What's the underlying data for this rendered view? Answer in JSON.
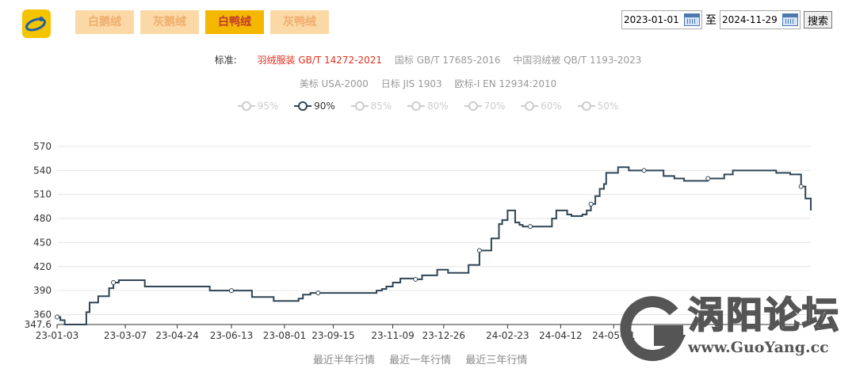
{
  "tabs": [
    {
      "label": "白鹅绒",
      "active": false
    },
    {
      "label": "灰鹅绒",
      "active": false
    },
    {
      "label": "白鸭绒",
      "active": true
    },
    {
      "label": "灰鸭绒",
      "active": false
    }
  ],
  "date_filter": {
    "start": "2023-01-01",
    "to_label": "至",
    "end": "2024-11-29",
    "search_label": "搜索"
  },
  "standards": {
    "label": "标准:",
    "row1": [
      "羽绒服装 GB/T 14272-2021",
      "国标 GB/T 17685-2016",
      "中国羽绒被 QB/T 1193-2023"
    ],
    "row2": [
      "美标 USA-2000",
      "日标 JIS 1903",
      "欧标-I EN 12934:2010"
    ],
    "active": "羽绒服装 GB/T 14272-2021"
  },
  "legend": [
    {
      "label": "95%",
      "selected": false
    },
    {
      "label": "90%",
      "selected": true
    },
    {
      "label": "85%",
      "selected": false
    },
    {
      "label": "80%",
      "selected": false
    },
    {
      "label": "70%",
      "selected": false
    },
    {
      "label": "60%",
      "selected": false
    },
    {
      "label": "50%",
      "selected": false
    }
  ],
  "range_links": [
    "最近半年行情",
    "最近一年行情",
    "最近三年行情"
  ],
  "watermark": {
    "title": "涡阳论坛",
    "url": "www.GuoYang.cc"
  },
  "colors": {
    "line": "#2f4554",
    "tab_active": "#f5b800",
    "tab_inactive": "#fbd9a6",
    "standard_active": "#e0301e"
  },
  "chart_data": {
    "type": "line",
    "ylim": [
      347.6,
      570
    ],
    "y_ticks": [
      "570",
      "540",
      "510",
      "480",
      "450",
      "420",
      "390",
      "360",
      "347.6"
    ],
    "x_ticks": [
      "23-01-03",
      "23-03-07",
      "23-04-24",
      "23-06-13",
      "23-08-01",
      "23-09-15",
      "23-11-09",
      "23-12-26",
      "24-02-23",
      "24-04-12",
      "24-05-31"
    ],
    "series": [
      {
        "name": "90%",
        "x": [
          "2023-01-03",
          "2023-01-06",
          "2023-01-10",
          "2023-01-20",
          "2023-01-30",
          "2023-02-02",
          "2023-02-06",
          "2023-02-10",
          "2023-02-14",
          "2023-02-20",
          "2023-02-24",
          "2023-03-01",
          "2023-03-07",
          "2023-03-15",
          "2023-03-22",
          "2023-03-25",
          "2023-04-01",
          "2023-04-24",
          "2023-05-20",
          "2023-05-24",
          "2023-06-13",
          "2023-06-28",
          "2023-07-02",
          "2023-07-18",
          "2023-07-22",
          "2023-08-01",
          "2023-08-10",
          "2023-08-14",
          "2023-08-18",
          "2023-08-25",
          "2023-09-01",
          "2023-09-15",
          "2023-10-15",
          "2023-10-25",
          "2023-10-30",
          "2023-11-03",
          "2023-11-09",
          "2023-11-12",
          "2023-11-16",
          "2023-11-24",
          "2023-11-30",
          "2023-12-06",
          "2023-12-12",
          "2023-12-20",
          "2023-12-26",
          "2023-12-30",
          "2024-01-05",
          "2024-01-12",
          "2024-01-18",
          "2024-01-22",
          "2024-01-28",
          "2024-02-01",
          "2024-02-08",
          "2024-02-15",
          "2024-02-18",
          "2024-02-23",
          "2024-02-26",
          "2024-03-01",
          "2024-03-05",
          "2024-03-08",
          "2024-03-15",
          "2024-03-22",
          "2024-04-04",
          "2024-04-08",
          "2024-04-12",
          "2024-04-18",
          "2024-04-22",
          "2024-04-26",
          "2024-05-02",
          "2024-05-06",
          "2024-05-10",
          "2024-05-14",
          "2024-05-18",
          "2024-05-22",
          "2024-05-24",
          "2024-05-28",
          "2024-06-04",
          "2024-06-08",
          "2024-06-14",
          "2024-06-20",
          "2024-06-28",
          "2024-07-02",
          "2024-07-06",
          "2024-07-10",
          "2024-07-16",
          "2024-07-26",
          "2024-08-04",
          "2024-08-10",
          "2024-08-14",
          "2024-08-22",
          "2024-08-26",
          "2024-09-03",
          "2024-09-10",
          "2024-09-18",
          "2024-09-26",
          "2024-10-10",
          "2024-10-20",
          "2024-10-28",
          "2024-11-10",
          "2024-11-14",
          "2024-11-20",
          "2024-11-24",
          "2024-11-29"
        ],
        "values": [
          357,
          353,
          347.6,
          347.6,
          363,
          375,
          375,
          383,
          383,
          393,
          400,
          403,
          403,
          403,
          403,
          395,
          395,
          395,
          395,
          390,
          390,
          390,
          382,
          382,
          377,
          377,
          377,
          380,
          385,
          387,
          387,
          387,
          387,
          390,
          392,
          395,
          400,
          400,
          405,
          405,
          404,
          409,
          409,
          416,
          416,
          412,
          412,
          412,
          422,
          422,
          440,
          440,
          455,
          473,
          478,
          490,
          490,
          475,
          472,
          470,
          470,
          470,
          480,
          490,
          490,
          485,
          483,
          483,
          485,
          490,
          498,
          508,
          517,
          523,
          537,
          537,
          544,
          544,
          540,
          540,
          540,
          540,
          540,
          540,
          533,
          530,
          527,
          527,
          527,
          527,
          530,
          530,
          535,
          540,
          540,
          540,
          540,
          537,
          535,
          535,
          520,
          505,
          490
        ]
      }
    ]
  }
}
